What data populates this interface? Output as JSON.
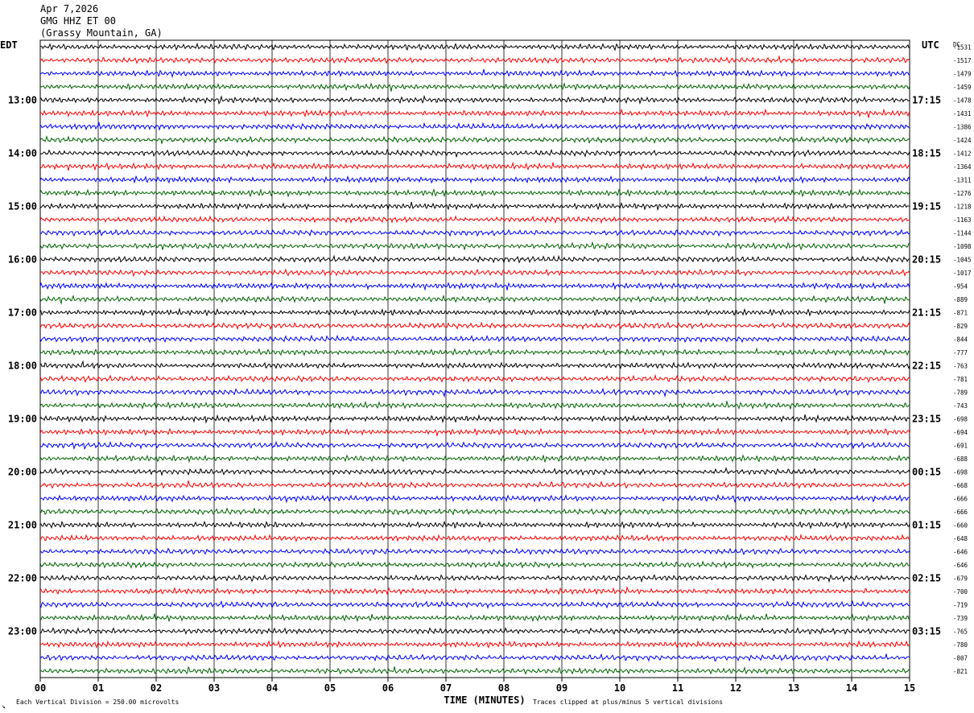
{
  "header": {
    "date": "Apr 7,2026",
    "station": "GMG HHZ ET 00",
    "location": "(Grassy Mountain, GA)"
  },
  "chart_data": {
    "type": "line",
    "title": "GMG HHZ ET 00",
    "left_axis_label": "EDT",
    "right_axis_label": "UTC",
    "dc_label": "DC",
    "xlabel": "TIME (MINUTES)",
    "x_ticks": [
      "00",
      "01",
      "02",
      "03",
      "04",
      "05",
      "06",
      "07",
      "08",
      "09",
      "10",
      "11",
      "12",
      "13",
      "14",
      "15"
    ],
    "xlim": [
      0,
      15
    ],
    "trace_colors": [
      "#000000",
      "#ff0000",
      "#0000ff",
      "#006400"
    ],
    "edt_labels": [
      "13:00",
      "14:00",
      "15:00",
      "16:00",
      "17:00",
      "18:00",
      "19:00",
      "20:00",
      "21:00",
      "22:00",
      "23:00"
    ],
    "utc_labels": [
      "17:15",
      "18:15",
      "19:15",
      "20:15",
      "21:15",
      "22:15",
      "23:15",
      "00:15",
      "01:15",
      "02:15",
      "03:15"
    ],
    "hour_label_rows": [
      4,
      8,
      12,
      16,
      20,
      24,
      28,
      32,
      36,
      40,
      44
    ],
    "dc_offsets": [
      "-1531",
      "-1517",
      "-1479",
      "-1459",
      "-1478",
      "-1431",
      "-1386",
      "-1424",
      "-1412",
      "-1364",
      "-1311",
      "-1276",
      "-1218",
      "-1163",
      "-1144",
      "-1098",
      "-1045",
      "-1017",
      "-954",
      "-889",
      "-871",
      "-829",
      "-844",
      "-777",
      "-763",
      "-781",
      "-789",
      "-743",
      "-698",
      "-694",
      "-691",
      "-688",
      "-698",
      "-668",
      "-666",
      "-666",
      "-660",
      "-648",
      "-646",
      "-646",
      "-679",
      "-700",
      "-719",
      "-739",
      "-765",
      "-780",
      "-807",
      "-821"
    ]
  },
  "footer": {
    "scale_note": "Each Vertical Division =  250.00 microvolts",
    "clip_note": "Traces clipped at plus/minus 5 vertical divisions",
    "corner_mark": "↘"
  }
}
